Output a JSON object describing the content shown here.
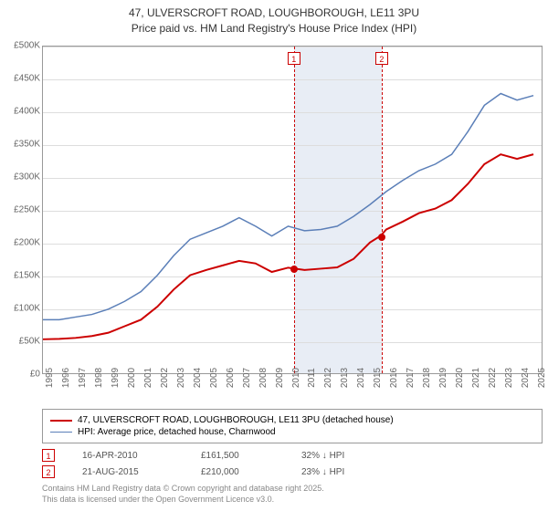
{
  "title_line1": "47, ULVERSCROFT ROAD, LOUGHBOROUGH, LE11 3PU",
  "title_line2": "Price paid vs. HM Land Registry's House Price Index (HPI)",
  "title_fontsize": 12,
  "title_color": "#333333",
  "chart": {
    "type": "line",
    "background_color": "#ffffff",
    "grid_color": "#dddddd",
    "border_color": "#999999",
    "ylim": [
      0,
      500000
    ],
    "ytick_step": 50000,
    "y_ticks": [
      "£0",
      "£50K",
      "£100K",
      "£150K",
      "£200K",
      "£250K",
      "£300K",
      "£350K",
      "£400K",
      "£450K",
      "£500K"
    ],
    "x_years": [
      1995,
      1996,
      1997,
      1998,
      1999,
      2000,
      2001,
      2002,
      2003,
      2004,
      2005,
      2006,
      2007,
      2008,
      2009,
      2010,
      2011,
      2012,
      2013,
      2014,
      2015,
      2016,
      2017,
      2018,
      2019,
      2020,
      2021,
      2022,
      2023,
      2024,
      2025
    ],
    "x_min": 1995,
    "x_max": 2025.5,
    "tick_fontsize": 10,
    "tick_color": "#666666",
    "shaded_region": {
      "x_start": 2010.29,
      "x_end": 2015.64,
      "color": "#e8edf5"
    },
    "markers": [
      {
        "n": "1",
        "x": 2010.29,
        "color": "#cc0000"
      },
      {
        "n": "2",
        "x": 2015.64,
        "color": "#cc0000"
      }
    ],
    "series_red": {
      "color": "#cc0000",
      "line_width": 2,
      "label": "47, ULVERSCROFT ROAD, LOUGHBOROUGH, LE11 3PU (detached house)",
      "points": [
        [
          1995,
          52000
        ],
        [
          1996,
          52500
        ],
        [
          1997,
          54000
        ],
        [
          1998,
          57000
        ],
        [
          1999,
          62000
        ],
        [
          2000,
          72000
        ],
        [
          2001,
          82000
        ],
        [
          2002,
          102000
        ],
        [
          2003,
          128000
        ],
        [
          2004,
          150000
        ],
        [
          2005,
          158000
        ],
        [
          2006,
          165000
        ],
        [
          2007,
          172000
        ],
        [
          2008,
          168000
        ],
        [
          2009,
          155000
        ],
        [
          2010,
          161500
        ],
        [
          2011,
          158000
        ],
        [
          2012,
          160000
        ],
        [
          2013,
          162000
        ],
        [
          2014,
          175000
        ],
        [
          2015,
          200000
        ],
        [
          2015.64,
          210000
        ],
        [
          2016,
          220000
        ],
        [
          2017,
          232000
        ],
        [
          2018,
          245000
        ],
        [
          2019,
          252000
        ],
        [
          2020,
          265000
        ],
        [
          2021,
          290000
        ],
        [
          2022,
          320000
        ],
        [
          2023,
          335000
        ],
        [
          2024,
          328000
        ],
        [
          2025,
          335000
        ]
      ],
      "sale_points": [
        {
          "x": 2010.29,
          "y": 161500
        },
        {
          "x": 2015.64,
          "y": 210000
        }
      ]
    },
    "series_blue": {
      "color": "#5b7fb8",
      "line_width": 1.5,
      "label": "HPI: Average price, detached house, Charnwood",
      "points": [
        [
          1995,
          82000
        ],
        [
          1996,
          82000
        ],
        [
          1997,
          86000
        ],
        [
          1998,
          90000
        ],
        [
          1999,
          98000
        ],
        [
          2000,
          110000
        ],
        [
          2001,
          125000
        ],
        [
          2002,
          150000
        ],
        [
          2003,
          180000
        ],
        [
          2004,
          205000
        ],
        [
          2005,
          215000
        ],
        [
          2006,
          225000
        ],
        [
          2007,
          238000
        ],
        [
          2008,
          225000
        ],
        [
          2009,
          210000
        ],
        [
          2010,
          225000
        ],
        [
          2011,
          218000
        ],
        [
          2012,
          220000
        ],
        [
          2013,
          225000
        ],
        [
          2014,
          240000
        ],
        [
          2015,
          258000
        ],
        [
          2016,
          278000
        ],
        [
          2017,
          295000
        ],
        [
          2018,
          310000
        ],
        [
          2019,
          320000
        ],
        [
          2020,
          335000
        ],
        [
          2021,
          370000
        ],
        [
          2022,
          410000
        ],
        [
          2023,
          428000
        ],
        [
          2024,
          418000
        ],
        [
          2025,
          425000
        ]
      ]
    }
  },
  "legend": {
    "border_color": "#999999",
    "fontsize": 10
  },
  "sales": [
    {
      "n": "1",
      "date": "16-APR-2010",
      "price": "£161,500",
      "hpi_diff": "32% ↓ HPI",
      "badge_color": "#cc0000"
    },
    {
      "n": "2",
      "date": "21-AUG-2015",
      "price": "£210,000",
      "hpi_diff": "23% ↓ HPI",
      "badge_color": "#cc0000"
    }
  ],
  "attribution_line1": "Contains HM Land Registry data © Crown copyright and database right 2025.",
  "attribution_line2": "This data is licensed under the Open Government Licence v3.0.",
  "attribution_color": "#888888"
}
